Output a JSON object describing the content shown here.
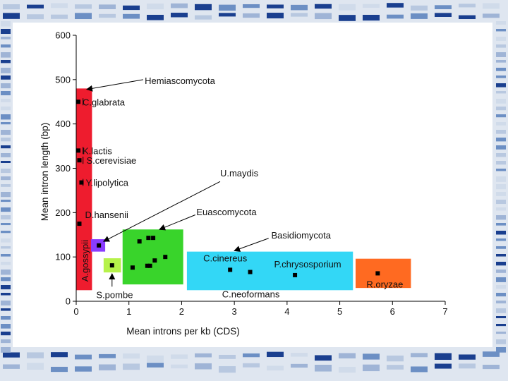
{
  "chart_data": {
    "type": "scatter",
    "title": "",
    "xlabel": "Mean introns per kb (CDS)",
    "ylabel": "Mean intron length (bp)",
    "xlim": [
      0,
      7
    ],
    "ylim": [
      0,
      600
    ],
    "xticks": [
      "0",
      "1",
      "2",
      "3",
      "4",
      "5",
      "6",
      "7"
    ],
    "yticks": [
      "0",
      "100",
      "200",
      "300",
      "400",
      "500",
      "600"
    ],
    "regions": [
      {
        "name": "hemiascomycota-region",
        "label": "A.gossypii",
        "color": "#ee1c2e",
        "x": [
          0.0,
          0.3
        ],
        "y": [
          25,
          480
        ]
      },
      {
        "name": "umaydis-region",
        "color": "#8a3cff",
        "x": [
          0.28,
          0.55
        ],
        "y": [
          112,
          140
        ]
      },
      {
        "name": "spombe-region",
        "color": "#b6f24a",
        "x": [
          0.52,
          0.85
        ],
        "y": [
          65,
          97
        ]
      },
      {
        "name": "euascomycota-region",
        "color": "#39d42b",
        "x": [
          0.88,
          2.03
        ],
        "y": [
          38,
          162
        ]
      },
      {
        "name": "basidiomycota-region",
        "color": "#33d7f6",
        "x": [
          2.1,
          5.25
        ],
        "y": [
          25,
          112
        ]
      },
      {
        "name": "roryzae-region",
        "color": "#ff6a21",
        "x": [
          5.3,
          6.35
        ],
        "y": [
          30,
          96
        ]
      }
    ],
    "points": [
      {
        "x": 0.04,
        "y": 450,
        "label": "C.glabrata"
      },
      {
        "x": 0.04,
        "y": 340,
        "label": "K.lactis"
      },
      {
        "x": 0.06,
        "y": 318,
        "label": "S.cerevisiae"
      },
      {
        "x": 0.1,
        "y": 268,
        "label": "Y.lipolytica"
      },
      {
        "x": 0.06,
        "y": 175,
        "label": "D.hansenii"
      },
      {
        "x": 0.43,
        "y": 126,
        "label": ""
      },
      {
        "x": 0.68,
        "y": 81,
        "label": ""
      },
      {
        "x": 1.2,
        "y": 135,
        "label": ""
      },
      {
        "x": 1.37,
        "y": 143,
        "label": ""
      },
      {
        "x": 1.46,
        "y": 143,
        "label": ""
      },
      {
        "x": 1.07,
        "y": 76,
        "label": ""
      },
      {
        "x": 1.35,
        "y": 80,
        "label": ""
      },
      {
        "x": 1.4,
        "y": 80,
        "label": ""
      },
      {
        "x": 1.49,
        "y": 92,
        "label": ""
      },
      {
        "x": 1.69,
        "y": 100,
        "label": ""
      },
      {
        "x": 2.92,
        "y": 71,
        "label": "C.cinereus"
      },
      {
        "x": 3.3,
        "y": 66,
        "label": "C.neoformans"
      },
      {
        "x": 4.15,
        "y": 59,
        "label": "P.chrysosporium"
      },
      {
        "x": 5.72,
        "y": 63,
        "label": "R.oryzae"
      }
    ],
    "annotations": [
      {
        "text": "Hemiascomycota"
      },
      {
        "text": "U.maydis"
      },
      {
        "text": "Euascomycota"
      },
      {
        "text": "Basidiomycota"
      },
      {
        "text": "S.pombe"
      }
    ],
    "grid": false,
    "legend": "none"
  },
  "colors": {
    "background": "#dfe6f0",
    "stripe_light": "#b8c8e0",
    "stripe_mid": "#6c8fc4",
    "stripe_dark": "#1a3f8f",
    "marker": "#000000"
  }
}
